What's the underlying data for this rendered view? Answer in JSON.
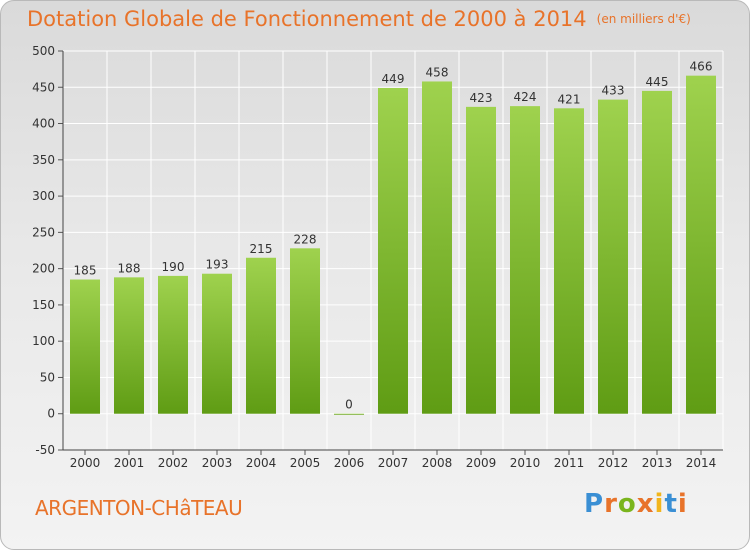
{
  "title": "Dotation Globale de Fonctionnement de 2000 à 2014",
  "unit_note": "(en milliers d'€)",
  "commune": "ARGENTON-CHâTEAU",
  "logo": {
    "letters": [
      "P",
      "r",
      "o",
      "x",
      "i",
      "t",
      "i"
    ],
    "colors": [
      "#3a8fd4",
      "#e8732a",
      "#7ab51d",
      "#e8732a",
      "#f2b51c",
      "#3a8fd4",
      "#e8732a"
    ]
  },
  "colors": {
    "bar_top": "#9fd24e",
    "bar_bottom": "#5f9c14",
    "title": "#e8732a",
    "grid": "#ffffff"
  },
  "chart_data": {
    "type": "bar",
    "categories": [
      "2000",
      "2001",
      "2002",
      "2003",
      "2004",
      "2005",
      "2006",
      "2007",
      "2008",
      "2009",
      "2010",
      "2011",
      "2012",
      "2013",
      "2014"
    ],
    "values": [
      185,
      188,
      190,
      193,
      215,
      228,
      0,
      449,
      458,
      423,
      424,
      421,
      433,
      445,
      466
    ],
    "ylim": [
      -50,
      500
    ],
    "yticks": [
      -50,
      0,
      50,
      100,
      150,
      200,
      250,
      300,
      350,
      400,
      450,
      500
    ],
    "grid": true,
    "xlabel": "",
    "ylabel": ""
  }
}
